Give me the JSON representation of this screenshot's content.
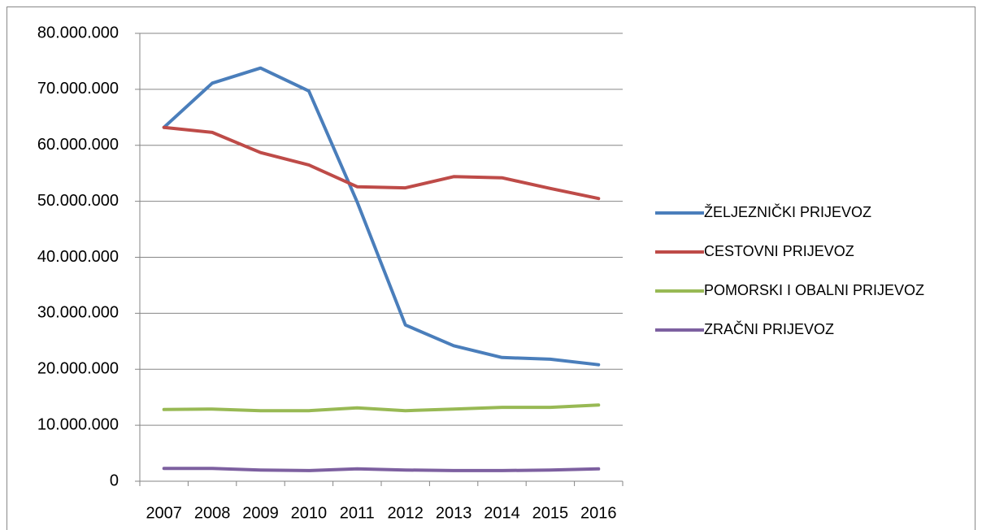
{
  "chart_data": {
    "type": "line",
    "categories": [
      "2007",
      "2008",
      "2009",
      "2010",
      "2011",
      "2012",
      "2013",
      "2014",
      "2015",
      "2016"
    ],
    "series": [
      {
        "name": "ŽELJEZNIČKI PRIJEVOZ",
        "color": "#4a7ebb",
        "values": [
          63200000,
          71100000,
          73800000,
          69700000,
          49900000,
          27900000,
          24200000,
          22100000,
          21800000,
          20800000
        ]
      },
      {
        "name": "CESTOVNI PRIJEVOZ",
        "color": "#be4b48",
        "values": [
          63200000,
          62300000,
          58700000,
          56500000,
          52600000,
          52400000,
          54400000,
          54200000,
          52300000,
          50500000
        ]
      },
      {
        "name": "POMORSKI I OBALNI PRIJEVOZ",
        "color": "#98b954",
        "values": [
          12800000,
          12900000,
          12600000,
          12600000,
          13100000,
          12600000,
          12900000,
          13200000,
          13200000,
          13600000
        ]
      },
      {
        "name": "ZRAČNI PRIJEVOZ",
        "color": "#7d60a0",
        "values": [
          2300000,
          2300000,
          2000000,
          1900000,
          2200000,
          2000000,
          1900000,
          1900000,
          2000000,
          2200000
        ]
      }
    ],
    "ylim": [
      0,
      80000000
    ],
    "yticks": [
      0,
      {
        "value": 10000000,
        "label": "10.000.000"
      },
      {
        "value": 20000000,
        "label": "20.000.000"
      },
      {
        "value": 30000000,
        "label": "30.000.000"
      },
      {
        "value": 40000000,
        "label": "40.000.000"
      },
      {
        "value": 50000000,
        "label": "50.000.000"
      },
      {
        "value": 60000000,
        "label": "60.000.000"
      },
      {
        "value": 70000000,
        "label": "70.000.000"
      },
      {
        "value": 80000000,
        "label": "80.000.000"
      }
    ],
    "grid": true,
    "legend": "right"
  }
}
